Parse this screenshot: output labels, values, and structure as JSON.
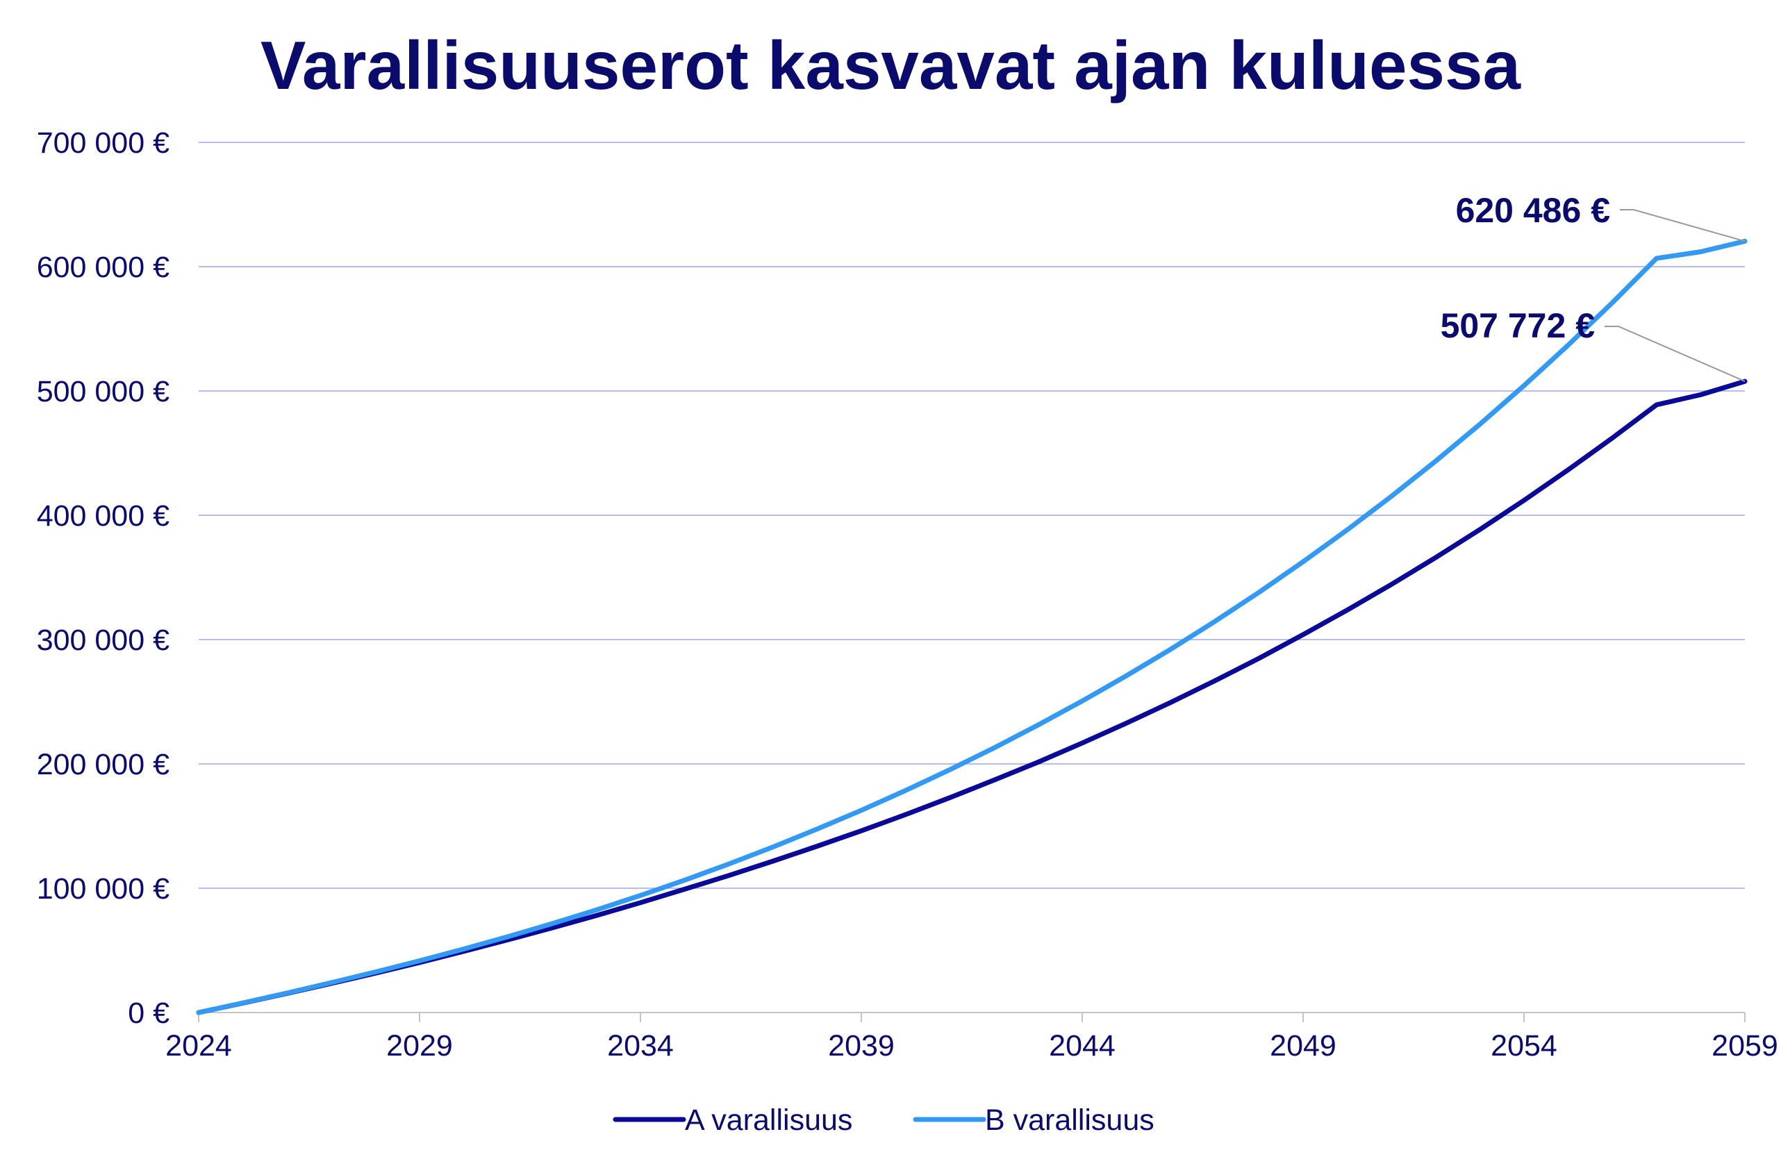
{
  "chart_data": {
    "type": "line",
    "title": "Varallisuuserot kasvavat ajan kuluessa",
    "xlabel": "",
    "ylabel": "",
    "x": [
      2024,
      2025,
      2026,
      2027,
      2028,
      2029,
      2030,
      2031,
      2032,
      2033,
      2034,
      2035,
      2036,
      2037,
      2038,
      2039,
      2040,
      2041,
      2042,
      2043,
      2044,
      2045,
      2046,
      2047,
      2048,
      2049,
      2050,
      2051,
      2052,
      2053,
      2054,
      2055,
      2056,
      2057,
      2058,
      2059
    ],
    "x_ticks": [
      2024,
      2029,
      2034,
      2039,
      2044,
      2049,
      2054,
      2059
    ],
    "ylim": [
      0,
      700000
    ],
    "y_ticks": [
      0,
      100000,
      200000,
      300000,
      400000,
      500000,
      600000,
      700000
    ],
    "y_tick_labels": [
      "0 €",
      "100 000 €",
      "200 000 €",
      "300 000 €",
      "400 000 €",
      "500 000 €",
      "600 000 €",
      "700 000 €"
    ],
    "grid": true,
    "legend_position": "bottom",
    "series": [
      {
        "name": "A varallisuus",
        "color": "#0a0a96",
        "values": [
          0,
          7600,
          15400,
          23400,
          31600,
          40200,
          49200,
          58500,
          68100,
          78000,
          88400,
          99200,
          110200,
          121800,
          133800,
          146200,
          159200,
          172800,
          186900,
          201400,
          216800,
          232800,
          249400,
          266800,
          284900,
          304000,
          323800,
          344400,
          366000,
          388500,
          412000,
          436600,
          462200,
          488900,
          497000,
          507772
        ],
        "end_label": "507 772 €"
      },
      {
        "name": "B varallisuus",
        "color": "#3399f2",
        "values": [
          0,
          7700,
          15700,
          24000,
          32600,
          41600,
          51100,
          61000,
          71500,
          82500,
          94200,
          106500,
          119500,
          133200,
          147600,
          162700,
          178600,
          195300,
          212800,
          231300,
          250600,
          270900,
          292200,
          314600,
          338000,
          362600,
          388300,
          415300,
          443600,
          473200,
          504300,
          536900,
          571000,
          606700,
          612000,
          620486
        ],
        "end_label": "620 486 €"
      }
    ]
  }
}
